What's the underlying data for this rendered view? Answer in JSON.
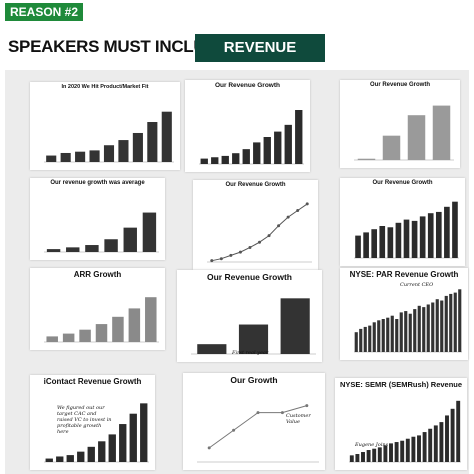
{
  "header": {
    "tag": "REASON #2",
    "title": "SPEAKERS MUST INCLUDE",
    "highlight": "REVENUE GRAPH"
  },
  "panels": [
    {
      "type": "bar",
      "title": "In 2020 We Hit Product/Market Fit",
      "color": "#333333",
      "ylim": [
        0,
        100
      ],
      "values": [
        10,
        14,
        16,
        18,
        26,
        34,
        45,
        62,
        78
      ]
    },
    {
      "type": "bar",
      "title": "Our Revenue Growth",
      "color": "#2b2b2b",
      "ylim": [
        0,
        100
      ],
      "values": [
        8,
        10,
        12,
        16,
        22,
        32,
        40,
        48,
        58,
        80
      ]
    },
    {
      "type": "bar",
      "title": "Our Revenue Growth",
      "color": "#9a9a9a",
      "ylim": [
        0,
        100
      ],
      "values": [
        2,
        38,
        70,
        85
      ]
    },
    {
      "type": "bar",
      "title": "Our revenue growth was average",
      "color": "#333333",
      "ylim": [
        0,
        100
      ],
      "values": [
        5,
        8,
        12,
        22,
        42,
        68
      ]
    },
    {
      "type": "line",
      "title": "Our Revenue Growth",
      "color": "#555555",
      "ylim": [
        0,
        100
      ],
      "values": [
        2,
        5,
        10,
        15,
        22,
        30,
        40,
        55,
        68,
        78,
        88
      ]
    },
    {
      "type": "bar",
      "title": "Our Revenue Growth",
      "color": "#2b2b2b",
      "ylim": [
        0,
        100
      ],
      "values": [
        35,
        40,
        45,
        50,
        48,
        55,
        60,
        58,
        65,
        70,
        72,
        80,
        88
      ]
    },
    {
      "type": "bar",
      "title": "ARR Growth",
      "color": "#8a8a8a",
      "ylim": [
        0,
        100
      ],
      "values": [
        10,
        15,
        22,
        32,
        45,
        60,
        80
      ]
    },
    {
      "type": "bar",
      "title": "Our Revenue Growth",
      "color": "#333333",
      "ylim": [
        0,
        100
      ],
      "values": [
        15,
        45,
        85
      ],
      "annotation": "First real year"
    },
    {
      "type": "bar",
      "title": "NYSE: PAR Revenue Growth",
      "color": "#333333",
      "ylim": [
        0,
        100
      ],
      "values": [
        30,
        35,
        38,
        40,
        45,
        48,
        50,
        52,
        55,
        50,
        60,
        62,
        58,
        65,
        70,
        68,
        72,
        75,
        80,
        78,
        85,
        88,
        90,
        95
      ],
      "annotation": "Current CEO"
    },
    {
      "type": "bar",
      "title": "iContact Revenue Growth",
      "color": "#2b2b2b",
      "ylim": [
        0,
        100
      ],
      "values": [
        5,
        8,
        10,
        15,
        22,
        30,
        40,
        55,
        70,
        85
      ],
      "annotation": "We figured out our target CAC and raised VC to invest in profitable growth here"
    },
    {
      "type": "line",
      "title": "Our Growth",
      "color": "#777777",
      "ylim": [
        0,
        100
      ],
      "values": [
        20,
        45,
        70,
        70,
        80
      ],
      "annotation": "Customer Value"
    },
    {
      "type": "bar",
      "title": "NYSE: SEMR (SEMRush) Revenue",
      "color": "#2b2b2b",
      "ylim": [
        0,
        100
      ],
      "values": [
        10,
        12,
        15,
        18,
        20,
        22,
        25,
        28,
        30,
        32,
        35,
        38,
        40,
        45,
        50,
        55,
        60,
        70,
        80,
        92
      ],
      "annotation": "Eugene Joins"
    }
  ]
}
